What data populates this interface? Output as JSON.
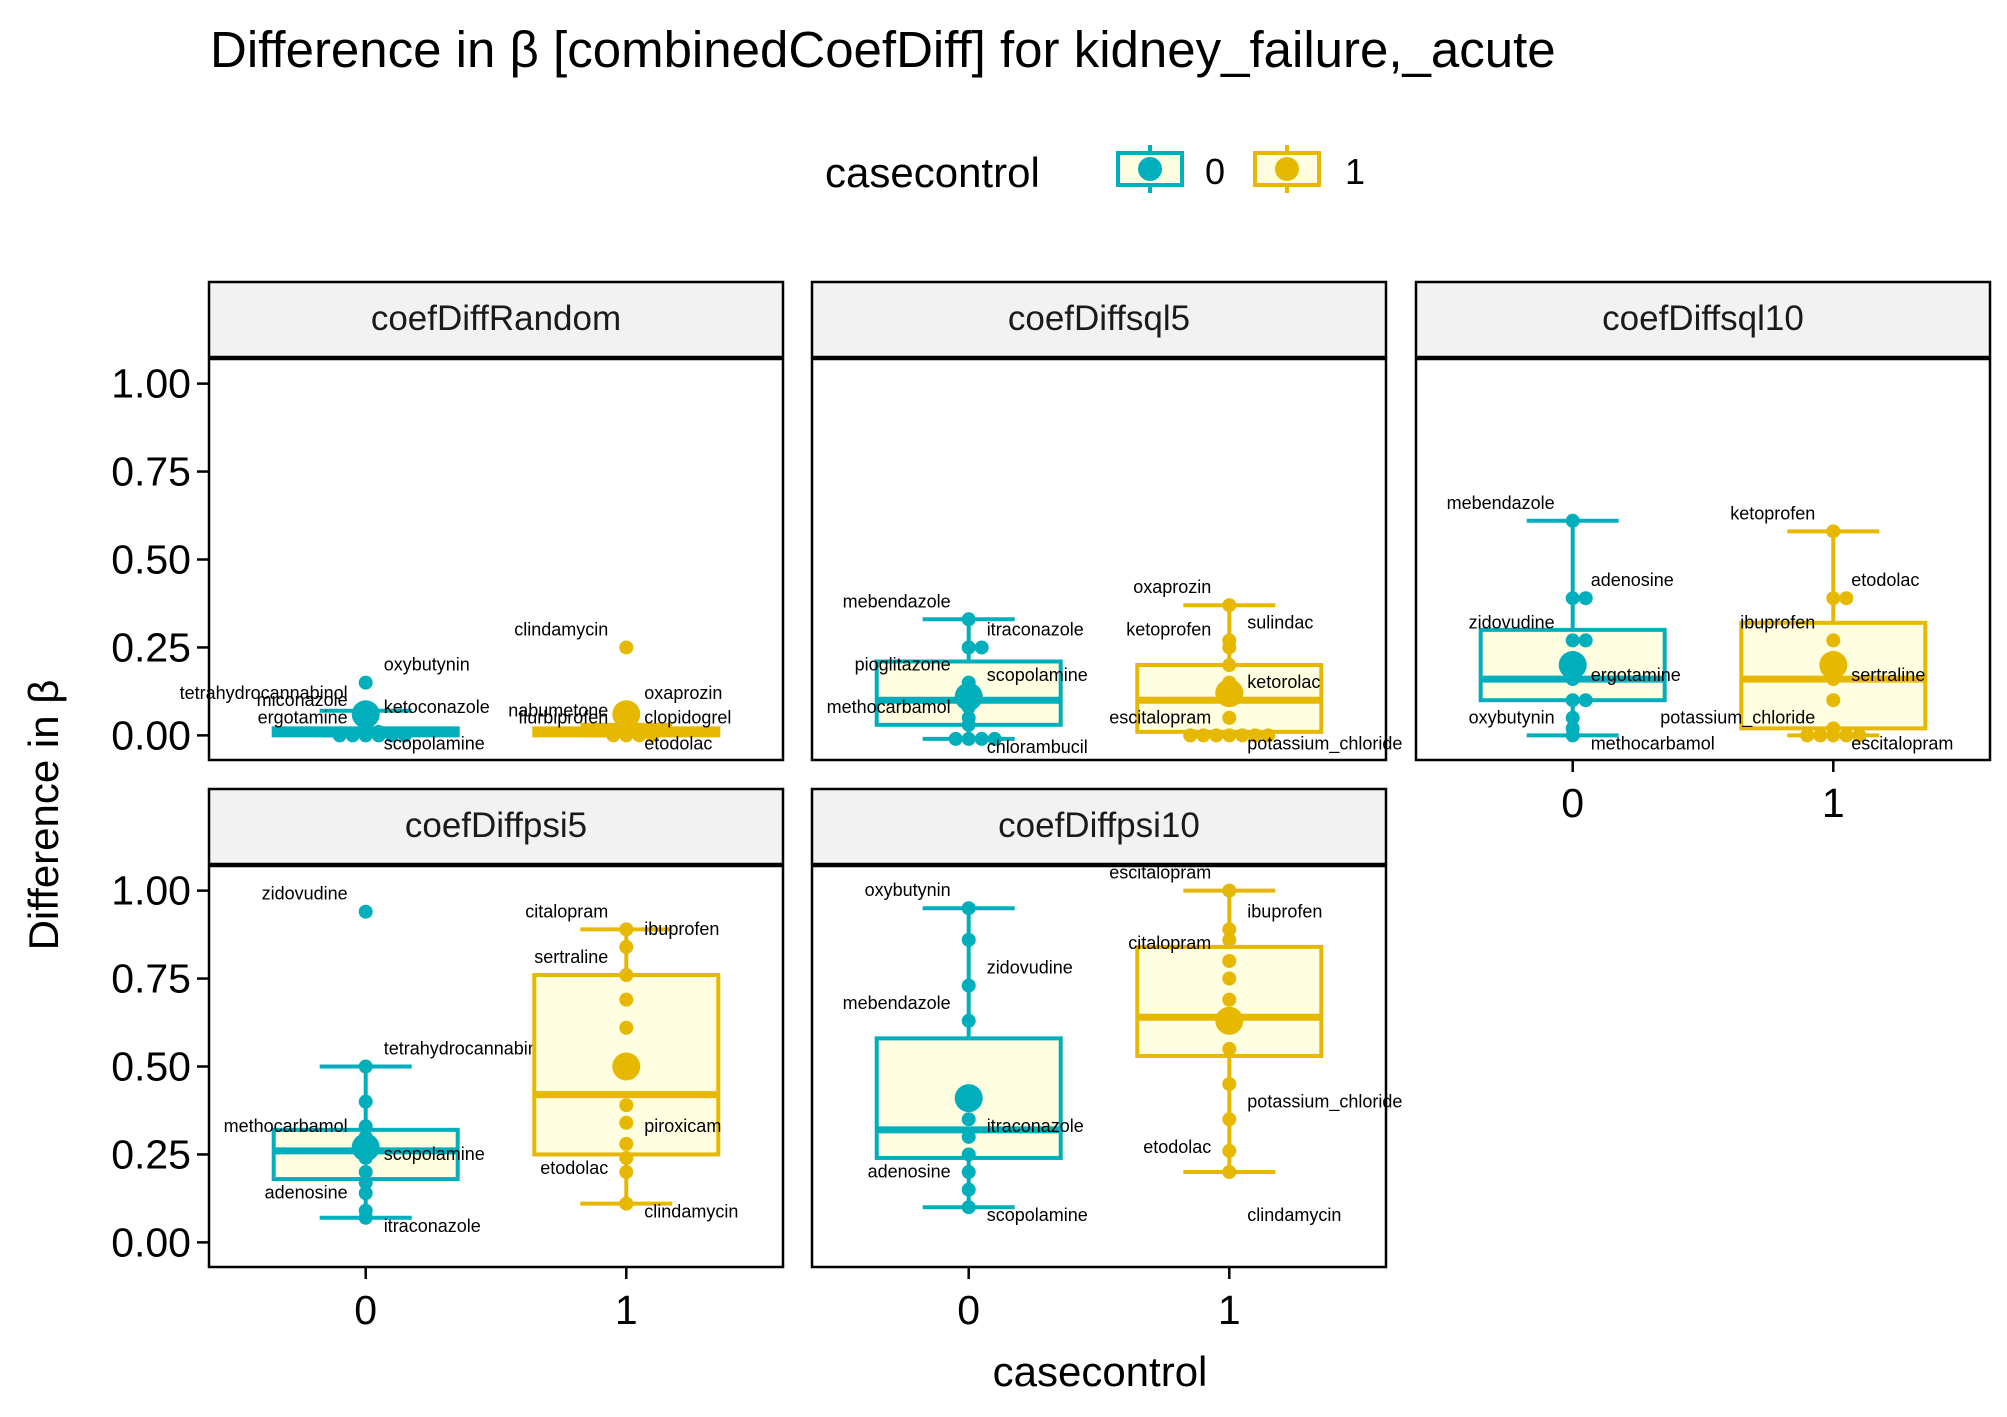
{
  "chart_data": {
    "type": "boxplot",
    "title": "Difference in β [combinedCoefDiff] for kidney_failure,_acute",
    "xlabel": "casecontrol",
    "ylabel": "Difference in β",
    "ylim": [
      -0.07,
      1.07
    ],
    "y_ticks": [
      0.0,
      0.25,
      0.5,
      0.75,
      1.0
    ],
    "y_tick_labels": [
      "0.00",
      "0.25",
      "0.50",
      "0.75",
      "1.00"
    ],
    "categories": [
      "0",
      "1"
    ],
    "legend": {
      "title": "casecontrol",
      "position": "top",
      "entries": [
        {
          "label": "0",
          "color": "#00AFBB"
        },
        {
          "label": "1",
          "color": "#E7B800"
        }
      ]
    },
    "box_fill": "#FFFEE0",
    "panels": [
      {
        "strip": "coefDiffRandom",
        "groups": [
          {
            "category": "0",
            "box": {
              "q1": 0.0,
              "median": 0.01,
              "q3": 0.02,
              "whisker_low": 0.0,
              "whisker_high": 0.07
            },
            "mean": 0.06,
            "points": [
              0.0,
              0.0,
              0.0,
              0.0,
              0.0,
              0.0,
              0.005,
              0.01,
              0.01,
              0.02,
              0.03,
              0.05,
              0.07,
              0.15
            ],
            "labels": [
              {
                "text": "miconazole",
                "value": 0.05
              },
              {
                "text": "oxybutynin",
                "value": 0.15
              },
              {
                "text": "tetrahydrocannabinol",
                "value": 0.07
              },
              {
                "text": "ketoconazole",
                "value": 0.03
              },
              {
                "text": "ergotamine",
                "value": 0.0
              },
              {
                "text": "scopolamine",
                "value": 0.0
              }
            ]
          },
          {
            "category": "1",
            "box": {
              "q1": 0.0,
              "median": 0.005,
              "q3": 0.02,
              "whisker_low": 0.0,
              "whisker_high": 0.03
            },
            "mean": 0.06,
            "points": [
              0.0,
              0.0,
              0.0,
              0.0,
              0.005,
              0.01,
              0.02,
              0.03,
              0.07,
              0.25
            ],
            "labels": [
              {
                "text": "clindamycin",
                "value": 0.25
              },
              {
                "text": "oxaprozin",
                "value": 0.07
              },
              {
                "text": "nabumetone",
                "value": 0.02
              },
              {
                "text": "clopidogrel",
                "value": 0.0
              },
              {
                "text": "flurbiprofen",
                "value": 0.0
              },
              {
                "text": "etodolac",
                "value": 0.0
              }
            ]
          }
        ]
      },
      {
        "strip": "coefDiffsql5",
        "groups": [
          {
            "category": "0",
            "box": {
              "q1": 0.03,
              "median": 0.1,
              "q3": 0.21,
              "whisker_low": -0.01,
              "whisker_high": 0.33
            },
            "mean": 0.11,
            "points": [
              -0.01,
              -0.01,
              -0.01,
              -0.01,
              0.03,
              0.05,
              0.08,
              0.1,
              0.12,
              0.15,
              0.25,
              0.25,
              0.33
            ],
            "labels": [
              {
                "text": "mebendazole",
                "value": 0.33
              },
              {
                "text": "itraconazole",
                "value": 0.25
              },
              {
                "text": "pioglitazone",
                "value": 0.15
              },
              {
                "text": "scopolamine",
                "value": 0.12
              },
              {
                "text": "methocarbamol",
                "value": 0.03
              },
              {
                "text": "chlorambucil",
                "value": -0.01
              }
            ]
          },
          {
            "category": "1",
            "box": {
              "q1": 0.01,
              "median": 0.1,
              "q3": 0.2,
              "whisker_low": 0.0,
              "whisker_high": 0.37
            },
            "mean": 0.12,
            "points": [
              0.0,
              0.0,
              0.0,
              0.0,
              0.0,
              0.0,
              0.0,
              0.05,
              0.1,
              0.12,
              0.15,
              0.2,
              0.25,
              0.27,
              0.37
            ],
            "labels": [
              {
                "text": "oxaprozin",
                "value": 0.37
              },
              {
                "text": "sulindac",
                "value": 0.27
              },
              {
                "text": "ketoprofen",
                "value": 0.25
              },
              {
                "text": "ketorolac",
                "value": 0.1
              },
              {
                "text": "escitalopram",
                "value": 0.0
              },
              {
                "text": "potassium_chloride",
                "value": 0.0
              }
            ]
          }
        ]
      },
      {
        "strip": "coefDiffsql10",
        "groups": [
          {
            "category": "0",
            "box": {
              "q1": 0.1,
              "median": 0.16,
              "q3": 0.3,
              "whisker_low": 0.0,
              "whisker_high": 0.61
            },
            "mean": 0.2,
            "points": [
              0.0,
              0.02,
              0.05,
              0.1,
              0.1,
              0.16,
              0.2,
              0.27,
              0.27,
              0.39,
              0.39,
              0.61
            ],
            "labels": [
              {
                "text": "mebendazole",
                "value": 0.61
              },
              {
                "text": "adenosine",
                "value": 0.39
              },
              {
                "text": "zidovudine",
                "value": 0.27
              },
              {
                "text": "ergotamine",
                "value": 0.12
              },
              {
                "text": "oxybutynin",
                "value": 0.0
              },
              {
                "text": "methocarbamol",
                "value": 0.0
              }
            ]
          },
          {
            "category": "1",
            "box": {
              "q1": 0.02,
              "median": 0.16,
              "q3": 0.32,
              "whisker_low": 0.0,
              "whisker_high": 0.58
            },
            "mean": 0.2,
            "points": [
              0.0,
              0.0,
              0.0,
              0.0,
              0.0,
              0.02,
              0.1,
              0.16,
              0.22,
              0.27,
              0.39,
              0.39,
              0.58
            ],
            "labels": [
              {
                "text": "ketoprofen",
                "value": 0.58
              },
              {
                "text": "etodolac",
                "value": 0.39
              },
              {
                "text": "ibuprofen",
                "value": 0.27
              },
              {
                "text": "sertraline",
                "value": 0.12
              },
              {
                "text": "potassium_chloride",
                "value": 0.0
              },
              {
                "text": "escitalopram",
                "value": 0.0
              }
            ]
          }
        ]
      },
      {
        "strip": "coefDiffpsi5",
        "groups": [
          {
            "category": "0",
            "box": {
              "q1": 0.18,
              "median": 0.26,
              "q3": 0.32,
              "whisker_low": 0.07,
              "whisker_high": 0.5
            },
            "mean": 0.27,
            "points": [
              0.07,
              0.09,
              0.14,
              0.17,
              0.2,
              0.24,
              0.26,
              0.28,
              0.3,
              0.33,
              0.4,
              0.5,
              0.94
            ],
            "labels": [
              {
                "text": "zidovudine",
                "value": 0.94
              },
              {
                "text": "tetrahydrocannabinol",
                "value": 0.5
              },
              {
                "text": "methocarbamol",
                "value": 0.28
              },
              {
                "text": "scopolamine",
                "value": 0.2
              },
              {
                "text": "adenosine",
                "value": 0.09
              },
              {
                "text": "itraconazole",
                "value": 0.07
              }
            ]
          },
          {
            "category": "1",
            "box": {
              "q1": 0.25,
              "median": 0.42,
              "q3": 0.76,
              "whisker_low": 0.11,
              "whisker_high": 0.89
            },
            "mean": 0.5,
            "points": [
              0.11,
              0.2,
              0.24,
              0.28,
              0.34,
              0.39,
              0.5,
              0.61,
              0.69,
              0.76,
              0.84,
              0.89
            ],
            "labels": [
              {
                "text": "citalopram",
                "value": 0.89
              },
              {
                "text": "ibuprofen",
                "value": 0.84
              },
              {
                "text": "sertraline",
                "value": 0.76
              },
              {
                "text": "piroxicam",
                "value": 0.28
              },
              {
                "text": "etodolac",
                "value": 0.16
              },
              {
                "text": "clindamycin",
                "value": 0.11
              }
            ]
          }
        ]
      },
      {
        "strip": "coefDiffpsi10",
        "groups": [
          {
            "category": "0",
            "box": {
              "q1": 0.24,
              "median": 0.32,
              "q3": 0.58,
              "whisker_low": 0.1,
              "whisker_high": 0.95
            },
            "mean": 0.41,
            "points": [
              0.1,
              0.15,
              0.2,
              0.25,
              0.3,
              0.35,
              0.4,
              0.63,
              0.73,
              0.86,
              0.95
            ],
            "labels": [
              {
                "text": "oxybutynin",
                "value": 0.95
              },
              {
                "text": "zidovudine",
                "value": 0.73
              },
              {
                "text": "mebendazole",
                "value": 0.63
              },
              {
                "text": "itraconazole",
                "value": 0.28
              },
              {
                "text": "adenosine",
                "value": 0.15
              },
              {
                "text": "scopolamine",
                "value": 0.1
              }
            ]
          },
          {
            "category": "1",
            "box": {
              "q1": 0.53,
              "median": 0.64,
              "q3": 0.84,
              "whisker_low": 0.2,
              "whisker_high": 1.0
            },
            "mean": 0.63,
            "points": [
              0.2,
              0.26,
              0.35,
              0.45,
              0.55,
              0.63,
              0.69,
              0.75,
              0.8,
              0.86,
              0.89,
              1.0
            ],
            "labels": [
              {
                "text": "escitalopram",
                "value": 1.0
              },
              {
                "text": "ibuprofen",
                "value": 0.89
              },
              {
                "text": "citalopram",
                "value": 0.8
              },
              {
                "text": "potassium_chloride",
                "value": 0.35
              },
              {
                "text": "etodolac",
                "value": 0.22
              },
              {
                "text": "clindamycin",
                "value": 0.1
              }
            ]
          }
        ]
      }
    ]
  }
}
